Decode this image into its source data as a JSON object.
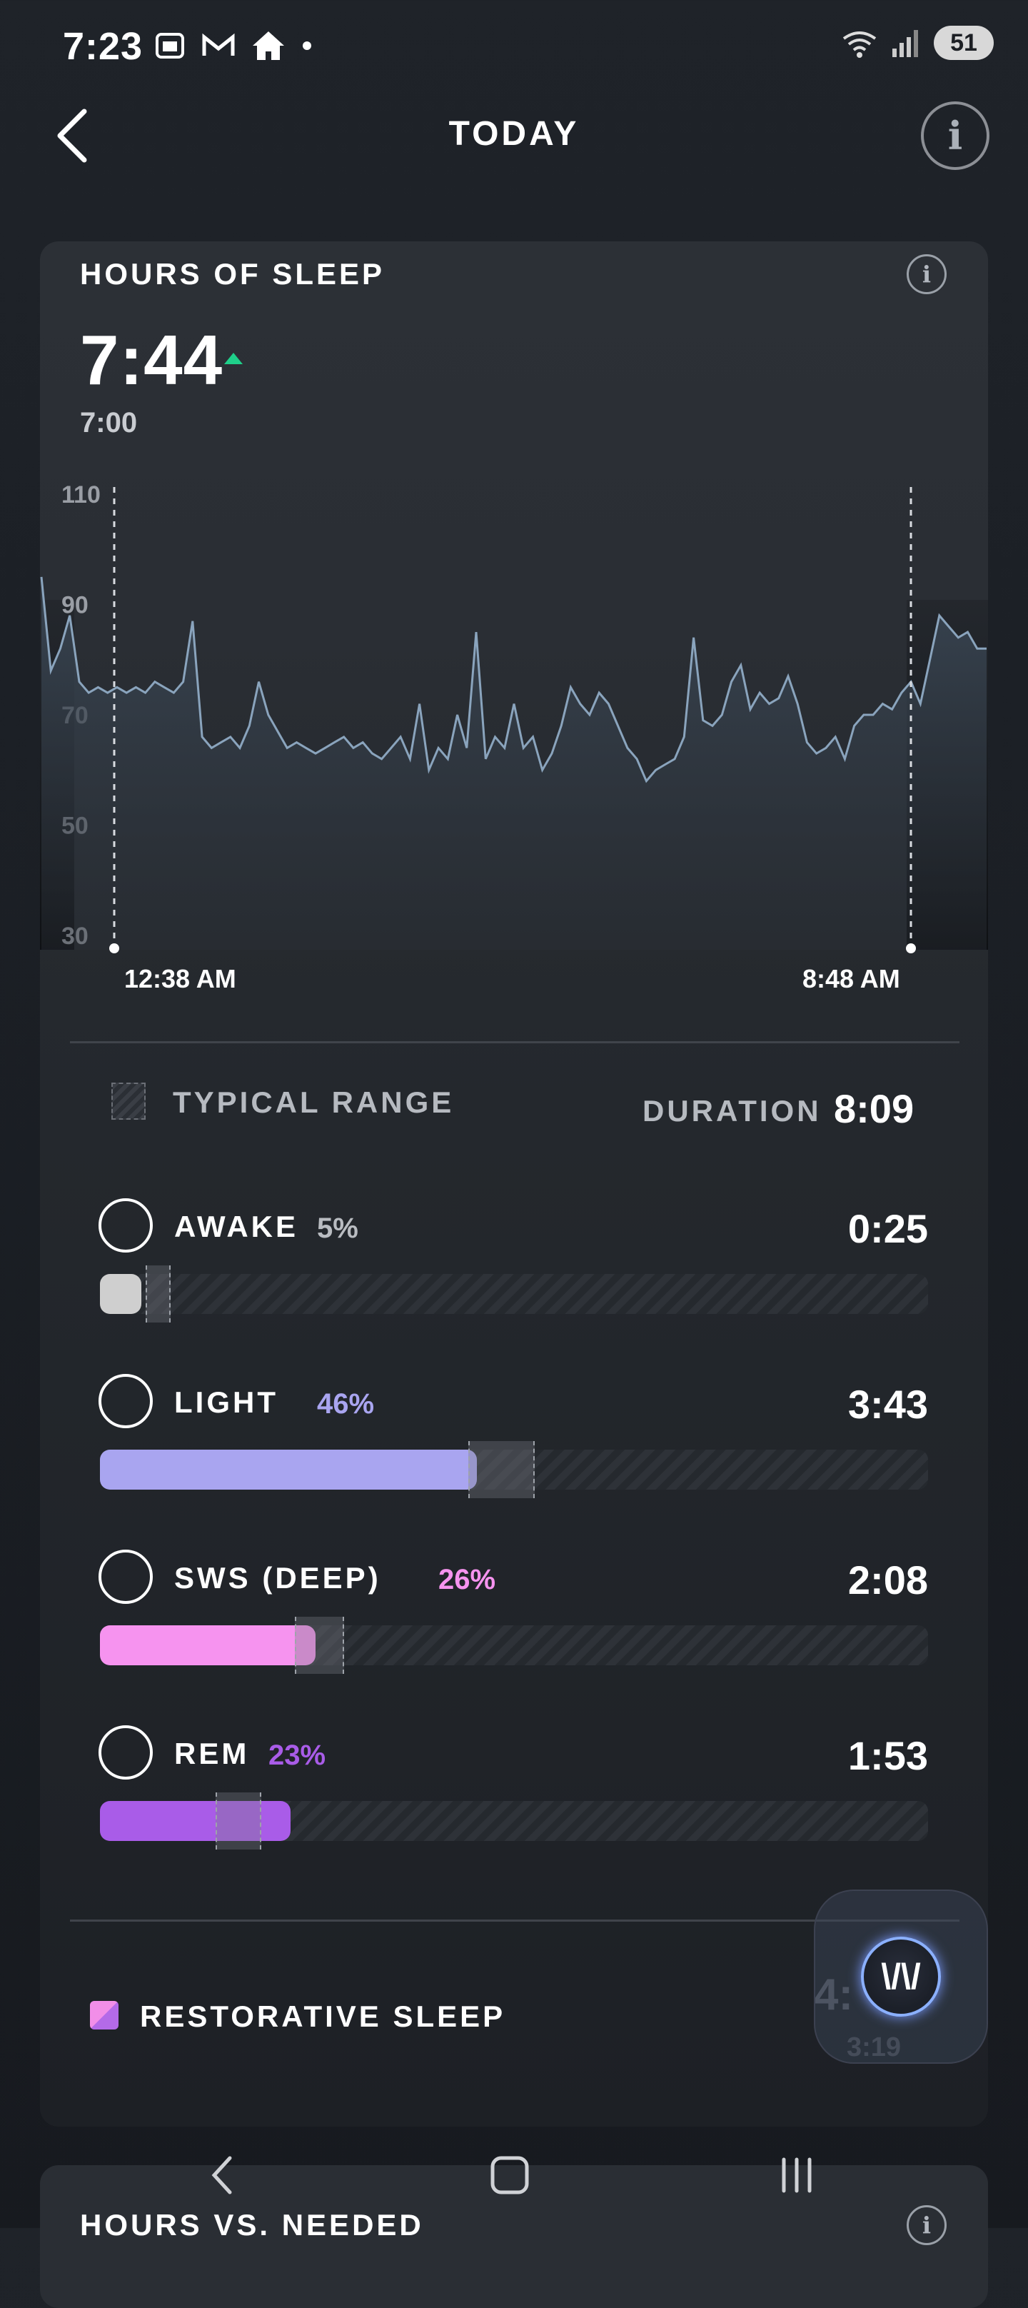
{
  "status_bar": {
    "time": "7:23",
    "battery": "51",
    "wifi_label": "5"
  },
  "header": {
    "title": "TODAY"
  },
  "sleep_card": {
    "title": "HOURS OF SLEEP",
    "hours": "7:44",
    "needed": "7:00",
    "start_time": "12:38 AM",
    "end_time": "8:48 AM"
  },
  "chart_data": {
    "type": "line",
    "yticks": [
      "110",
      "90",
      "70",
      "50",
      "30"
    ],
    "ylim": [
      30,
      110
    ],
    "x_labels": [
      "12:38 AM",
      "8:48 AM"
    ],
    "series": [
      {
        "values": [
          95,
          78,
          82,
          88,
          76,
          74,
          75,
          74,
          75,
          74,
          75,
          74,
          76,
          75,
          74,
          76,
          87,
          66,
          64,
          65,
          66,
          64,
          68,
          76,
          70,
          67,
          64,
          65,
          64,
          63,
          64,
          65,
          66,
          64,
          65,
          63,
          62,
          64,
          66,
          62,
          72,
          60,
          64,
          62,
          70,
          64,
          85,
          62,
          66,
          64,
          72,
          64,
          66,
          60,
          63,
          68,
          75,
          72,
          70,
          74,
          72,
          68,
          64,
          62,
          58,
          60,
          61,
          62,
          66,
          84,
          69,
          68,
          70,
          76,
          79,
          71,
          74,
          72,
          73,
          77,
          72,
          65,
          63,
          64,
          66,
          62,
          68,
          70,
          70,
          72,
          71,
          74,
          76,
          72,
          80,
          88,
          86,
          84,
          85,
          82,
          82
        ]
      }
    ],
    "colors": {
      "line": "#8aa4bd"
    }
  },
  "legend": {
    "typical_range": "TYPICAL RANGE",
    "duration_label": "DURATION",
    "duration_value": "8:09"
  },
  "stages": [
    {
      "name": "AWAKE",
      "pct": "5%",
      "time": "0:25",
      "fill_pct": 5,
      "range_start_pct": 5.5,
      "range_end_pct": 8.5,
      "color": "#cfcfcf",
      "pct_color": "#b9bcc1"
    },
    {
      "name": "LIGHT",
      "pct": "46%",
      "time": "3:43",
      "fill_pct": 45.5,
      "range_start_pct": 44.5,
      "range_end_pct": 52.5,
      "color": "#a9a5f0",
      "pct_color": "#a9a5f0"
    },
    {
      "name": "SWS (DEEP)",
      "pct": "26%",
      "time": "2:08",
      "fill_pct": 26,
      "range_start_pct": 23.5,
      "range_end_pct": 29.5,
      "color": "#f693ef",
      "pct_color": "#f693ef"
    },
    {
      "name": "REM",
      "pct": "23%",
      "time": "1:53",
      "fill_pct": 23,
      "range_start_pct": 14,
      "range_end_pct": 19.5,
      "color": "#a95ce8",
      "pct_color": "#a95ce8"
    }
  ],
  "restorative": {
    "label": "RESTORATIVE SLEEP",
    "value": "4:",
    "sub": "3:19"
  },
  "next_card": {
    "title": "HOURS VS. NEEDED"
  }
}
